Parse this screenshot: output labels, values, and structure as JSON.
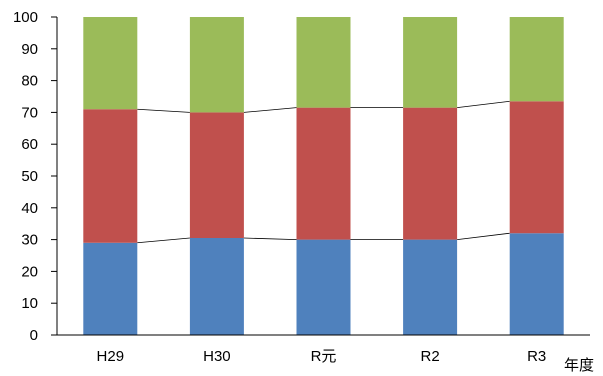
{
  "chart_data": {
    "type": "bar",
    "stacked": true,
    "categories": [
      "H29",
      "H30",
      "R元",
      "R2",
      "R3"
    ],
    "series": [
      {
        "color": "#4f81bd",
        "values": [
          29,
          30.5,
          30,
          30,
          32
        ]
      },
      {
        "color": "#c0504d",
        "values": [
          42,
          39.5,
          41.5,
          41.5,
          41.5
        ]
      },
      {
        "color": "#9bbb59",
        "values": [
          29,
          30,
          28.5,
          28.5,
          26.5
        ]
      }
    ],
    "xlabel": "年度",
    "ylabel": "",
    "ylim": [
      0,
      100
    ],
    "yticks": [
      0,
      10,
      20,
      30,
      40,
      50,
      60,
      70,
      80,
      90,
      100
    ],
    "grid": false,
    "legend": "none",
    "connector_lines": true
  }
}
